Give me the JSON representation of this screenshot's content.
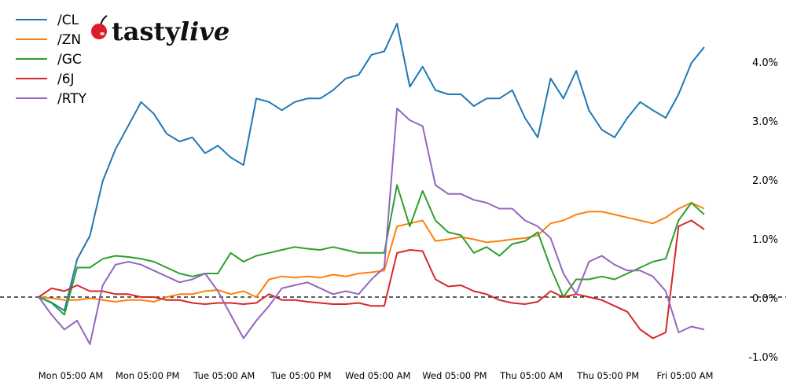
{
  "chart_data": {
    "type": "line",
    "title": "",
    "xlabel": "",
    "ylabel": "",
    "ylim": [
      -1.0,
      4.9
    ],
    "yticks": [
      "4.0%",
      "3.0%",
      "2.0%",
      "1.0%",
      "0.0%",
      "-1.0%"
    ],
    "ytick_values": [
      4,
      3,
      2,
      1,
      0,
      -1
    ],
    "y_axis_side": "right",
    "xticks": [
      "Mon 05:00 AM",
      "Mon 05:00 PM",
      "Tue 05:00 AM",
      "Tue 05:00 PM",
      "Wed 05:00 AM",
      "Wed 05:00 PM",
      "Thu 05:00 AM",
      "Thu 05:00 PM",
      "Fri 05:00 AM"
    ],
    "xtick_times": [
      "Mon 05:00",
      "Mon 17:00",
      "Tue 05:00",
      "Tue 17:00",
      "Wed 05:00",
      "Wed 17:00",
      "Thu 05:00",
      "Thu 17:00",
      "Fri 05:00"
    ],
    "zero_line": "dashed black",
    "grid": false,
    "legend_position": "top-left",
    "x": [
      "Mon 00:00",
      "Mon 02:00",
      "Mon 04:00",
      "Mon 06:00",
      "Mon 08:00",
      "Mon 10:00",
      "Mon 12:00",
      "Mon 14:00",
      "Mon 16:00",
      "Mon 18:00",
      "Mon 20:00",
      "Mon 22:00",
      "Tue 00:00",
      "Tue 02:00",
      "Tue 04:00",
      "Tue 06:00",
      "Tue 08:00",
      "Tue 10:00",
      "Tue 12:00",
      "Tue 14:00",
      "Tue 16:00",
      "Tue 18:00",
      "Tue 20:00",
      "Tue 22:00",
      "Wed 00:00",
      "Wed 02:00",
      "Wed 04:00",
      "Wed 06:00",
      "Wed 08:00",
      "Wed 10:00",
      "Wed 12:00",
      "Wed 14:00",
      "Wed 16:00",
      "Wed 18:00",
      "Wed 20:00",
      "Wed 22:00",
      "Thu 00:00",
      "Thu 02:00",
      "Thu 04:00",
      "Thu 06:00",
      "Thu 08:00",
      "Thu 10:00",
      "Thu 12:00",
      "Thu 14:00",
      "Thu 16:00",
      "Thu 18:00",
      "Thu 20:00",
      "Thu 22:00",
      "Fri 00:00",
      "Fri 02:00",
      "Fri 04:00",
      "Fri 06:00",
      "Fri 08:00"
    ],
    "series": [
      {
        "name": "/CL",
        "color": "#1f77b4",
        "values": [
          0.0,
          -0.09,
          -0.23,
          0.64,
          1.04,
          1.97,
          2.51,
          2.91,
          3.31,
          3.11,
          2.77,
          2.64,
          2.71,
          2.44,
          2.57,
          2.37,
          2.24,
          3.37,
          3.31,
          3.17,
          3.31,
          3.37,
          3.37,
          3.51,
          3.71,
          3.77,
          4.11,
          4.17,
          4.64,
          3.57,
          3.91,
          3.51,
          3.44,
          3.44,
          3.24,
          3.37,
          3.37,
          3.51,
          3.04,
          2.71,
          3.71,
          3.37,
          3.84,
          3.17,
          2.84,
          2.71,
          3.04,
          3.31,
          3.17,
          3.04,
          3.44,
          3.97,
          4.24
        ]
      },
      {
        "name": "/ZN",
        "color": "#ff7f0e",
        "values": [
          0.0,
          -0.02,
          -0.05,
          -0.05,
          -0.02,
          -0.05,
          -0.08,
          -0.05,
          -0.05,
          -0.08,
          0.0,
          0.05,
          0.05,
          0.1,
          0.12,
          0.05,
          0.1,
          0.0,
          0.3,
          0.35,
          0.33,
          0.35,
          0.33,
          0.38,
          0.35,
          0.4,
          0.42,
          0.45,
          1.2,
          1.25,
          1.3,
          0.95,
          0.98,
          1.02,
          0.98,
          0.93,
          0.95,
          0.98,
          1.0,
          1.05,
          1.25,
          1.3,
          1.4,
          1.45,
          1.45,
          1.4,
          1.35,
          1.3,
          1.25,
          1.35,
          1.5,
          1.6,
          1.5
        ]
      },
      {
        "name": "/GC",
        "color": "#2ca02c",
        "values": [
          0.0,
          -0.1,
          -0.3,
          0.5,
          0.5,
          0.65,
          0.7,
          0.68,
          0.65,
          0.6,
          0.5,
          0.4,
          0.35,
          0.4,
          0.4,
          0.75,
          0.6,
          0.7,
          0.75,
          0.8,
          0.85,
          0.82,
          0.8,
          0.85,
          0.8,
          0.75,
          0.75,
          0.75,
          1.9,
          1.2,
          1.8,
          1.3,
          1.1,
          1.05,
          0.75,
          0.85,
          0.7,
          0.9,
          0.95,
          1.1,
          0.5,
          0.0,
          0.3,
          0.3,
          0.35,
          0.3,
          0.4,
          0.5,
          0.6,
          0.65,
          1.3,
          1.6,
          1.4
        ]
      },
      {
        "name": "/6J",
        "color": "#d62728",
        "values": [
          0.0,
          0.15,
          0.1,
          0.2,
          0.1,
          0.1,
          0.05,
          0.05,
          0.0,
          0.0,
          -0.05,
          -0.05,
          -0.1,
          -0.12,
          -0.1,
          -0.1,
          -0.12,
          -0.1,
          0.05,
          -0.05,
          -0.05,
          -0.08,
          -0.1,
          -0.12,
          -0.12,
          -0.1,
          -0.15,
          -0.15,
          0.75,
          0.8,
          0.78,
          0.3,
          0.18,
          0.2,
          0.1,
          0.05,
          -0.05,
          -0.1,
          -0.12,
          -0.08,
          0.1,
          0.0,
          0.05,
          0.0,
          -0.05,
          -0.15,
          -0.25,
          -0.55,
          -0.7,
          -0.6,
          1.2,
          1.3,
          1.15
        ]
      },
      {
        "name": "/RTY",
        "color": "#9467bd",
        "values": [
          0.0,
          -0.3,
          -0.55,
          -0.4,
          -0.8,
          0.2,
          0.55,
          0.6,
          0.55,
          0.45,
          0.35,
          0.25,
          0.3,
          0.4,
          0.1,
          -0.3,
          -0.7,
          -0.4,
          -0.15,
          0.15,
          0.2,
          0.25,
          0.15,
          0.05,
          0.1,
          0.05,
          0.3,
          0.5,
          3.2,
          3.0,
          2.9,
          1.9,
          1.75,
          1.75,
          1.65,
          1.6,
          1.5,
          1.5,
          1.3,
          1.2,
          1.0,
          0.4,
          0.05,
          0.6,
          0.7,
          0.55,
          0.45,
          0.45,
          0.35,
          0.1,
          -0.6,
          -0.5,
          -0.55
        ]
      }
    ]
  },
  "logo": {
    "text_bold": "tasty",
    "text_italic": "live",
    "icon": "cherry-icon"
  }
}
